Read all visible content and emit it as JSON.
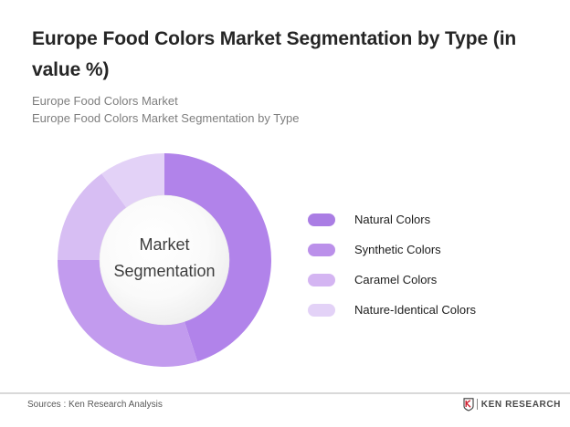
{
  "page": {
    "title": "Europe Food Colors Market Segmentation by Type (in value %)",
    "title_lines": [
      "Europe Food Colors Market Segmentation by Type (in",
      "value %)"
    ],
    "subtitle_lines": [
      "Europe Food Colors Market",
      "Europe Food Colors Market Segmentation by Type"
    ]
  },
  "chart_data": {
    "type": "pie",
    "subtype": "donut",
    "title": "Europe Food Colors Market Segmentation by Type (in value %)",
    "units": "value %",
    "center_label_lines": [
      "Market",
      "Segmentation"
    ],
    "categories": [
      "Natural Colors",
      "Synthetic Colors",
      "Caramel Colors",
      "Nature-Identical Colors"
    ],
    "values": [
      45,
      30,
      15,
      10
    ],
    "colors": [
      "#b183ea",
      "#c29bee",
      "#d7bef3",
      "#e3d2f7"
    ],
    "start_angle_deg": 0,
    "direction": "clockwise",
    "legend_position": "right",
    "data_labels_shown": false
  },
  "legend": {
    "items": [
      {
        "label": "Natural Colors",
        "color": "#aa7de4"
      },
      {
        "label": "Synthetic Colors",
        "color": "#bb90ea"
      },
      {
        "label": "Caramel Colors",
        "color": "#d4b5f2"
      },
      {
        "label": "Nature-Identical Colors",
        "color": "#e3d2f7"
      }
    ]
  },
  "footer": {
    "sources_text": "Sources : Ken Research Analysis",
    "brand_text": "KEN RESEARCH"
  }
}
